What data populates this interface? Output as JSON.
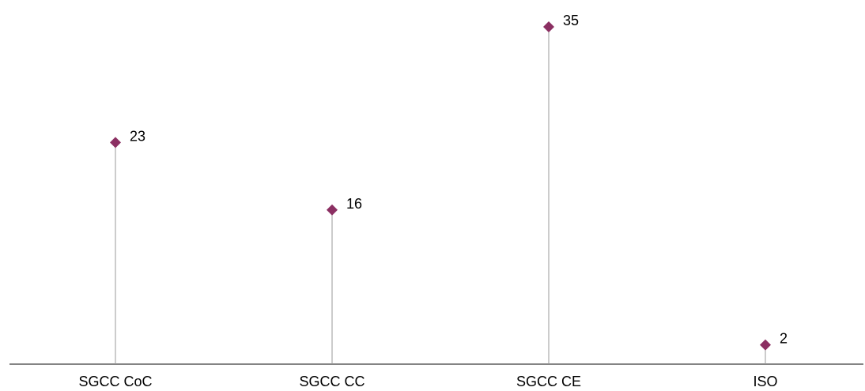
{
  "chart_data": {
    "type": "lollipop",
    "categories": [
      "SGCC CoC",
      "SGCC CC",
      "SGCC CE",
      "ISO"
    ],
    "values": [
      23,
      16,
      35,
      2
    ],
    "title": "",
    "xlabel": "",
    "ylabel": "",
    "ylim": [
      0,
      37
    ],
    "grid": false,
    "legend": "none",
    "colors": {
      "marker": "#8B2F62",
      "stem": "#9A9A9A",
      "axis": "#3A3A3A"
    },
    "marker_shape": "diamond",
    "data_labels": true
  }
}
